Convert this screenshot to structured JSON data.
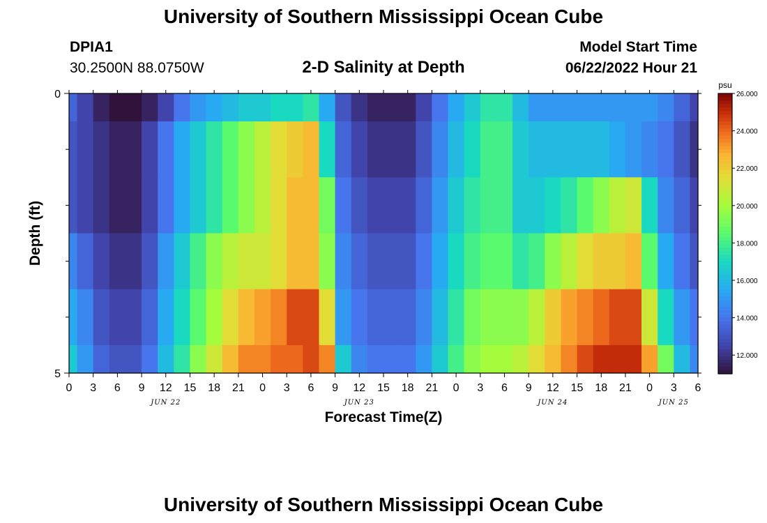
{
  "header": {
    "title": "University of Southern Mississippi Ocean Cube",
    "footer_title": "University of Southern Mississippi Ocean Cube",
    "station": "DPIA1",
    "coords": "30.2500N  88.0750W",
    "start_label": "Model Start Time",
    "start_value": "06/22/2022 Hour 21"
  },
  "chart_data": {
    "type": "heatmap",
    "title": "2-D Salinity at Depth",
    "xlabel": "Forecast Time(Z)",
    "ylabel": "Depth (ft)",
    "x_tick_labels": [
      "0",
      "3",
      "6",
      "9",
      "12",
      "15",
      "18",
      "21",
      "0",
      "3",
      "6",
      "9",
      "12",
      "15",
      "18",
      "21",
      "0",
      "3",
      "6",
      "9",
      "12",
      "15",
      "18",
      "21",
      "0",
      "3",
      "6"
    ],
    "x_date_labels": [
      {
        "label": "JUN 22",
        "at_tick": 4
      },
      {
        "label": "JUN 23",
        "at_tick": 12
      },
      {
        "label": "JUN 24",
        "at_tick": 20
      },
      {
        "label": "JUN 25",
        "at_tick": 25
      }
    ],
    "x_range_hours": [
      0,
      78
    ],
    "y_tick_labels": [
      "0",
      "5"
    ],
    "y_range_ft": [
      0,
      5
    ],
    "row_depths_ft": [
      0,
      1,
      2,
      3,
      4,
      5
    ],
    "time_hours": [
      0,
      2,
      4,
      6,
      8,
      10,
      12,
      14,
      16,
      18,
      20,
      22,
      24,
      26,
      28,
      30,
      32,
      34,
      36,
      38,
      40,
      42,
      44,
      46,
      48,
      50,
      52,
      54,
      56,
      58,
      60,
      62,
      64,
      66,
      68,
      70,
      72,
      74,
      76,
      78
    ],
    "salinity_psu": [
      [
        13.5,
        12.5,
        11.5,
        11.0,
        11.0,
        11.5,
        12.5,
        14.0,
        15.0,
        15.5,
        16.0,
        16.5,
        16.5,
        17.0,
        17.0,
        17.5,
        15.5,
        13.0,
        12.0,
        11.5,
        11.5,
        11.5,
        12.5,
        14.0,
        15.5,
        16.5,
        17.5,
        17.5,
        16.0,
        15.0,
        15.0,
        15.0,
        15.0,
        15.0,
        15.0,
        15.0,
        15.0,
        14.5,
        13.5,
        12.5
      ],
      [
        13.0,
        12.5,
        12.0,
        11.5,
        11.5,
        12.5,
        14.0,
        15.5,
        16.5,
        17.5,
        18.5,
        19.5,
        20.5,
        21.5,
        22.0,
        22.5,
        17.0,
        13.5,
        12.5,
        12.0,
        12.0,
        12.0,
        13.0,
        14.5,
        16.0,
        17.0,
        18.0,
        18.0,
        16.5,
        16.0,
        16.0,
        16.0,
        16.0,
        16.0,
        15.5,
        15.0,
        14.5,
        14.0,
        13.0,
        12.0
      ],
      [
        13.0,
        12.5,
        12.0,
        11.5,
        11.5,
        12.5,
        14.0,
        15.5,
        16.5,
        17.5,
        18.5,
        19.5,
        20.5,
        21.5,
        22.5,
        22.5,
        19.0,
        14.0,
        13.0,
        12.5,
        12.5,
        12.5,
        13.5,
        15.0,
        16.5,
        17.5,
        18.0,
        18.0,
        16.5,
        16.5,
        17.0,
        17.5,
        18.5,
        19.5,
        20.5,
        21.0,
        17.0,
        14.5,
        13.5,
        12.5
      ],
      [
        14.5,
        13.5,
        12.5,
        12.0,
        12.0,
        13.0,
        15.0,
        16.5,
        18.0,
        19.5,
        20.5,
        21.0,
        21.0,
        21.5,
        22.5,
        22.5,
        19.5,
        14.5,
        13.5,
        13.0,
        13.0,
        13.0,
        14.0,
        15.5,
        17.0,
        18.0,
        18.5,
        18.5,
        17.5,
        18.0,
        19.5,
        20.5,
        21.5,
        22.0,
        22.0,
        22.5,
        18.5,
        15.5,
        14.0,
        13.0
      ],
      [
        15.5,
        14.5,
        13.0,
        12.5,
        12.5,
        13.5,
        15.5,
        17.0,
        18.5,
        20.0,
        21.5,
        22.5,
        23.0,
        23.5,
        24.5,
        24.5,
        21.5,
        15.0,
        14.0,
        13.5,
        13.5,
        13.5,
        14.5,
        16.0,
        17.5,
        19.0,
        19.5,
        19.5,
        19.5,
        20.5,
        22.0,
        23.0,
        23.5,
        24.0,
        24.5,
        24.5,
        21.0,
        17.0,
        15.0,
        14.0
      ],
      [
        16.5,
        15.0,
        13.5,
        13.0,
        13.0,
        14.0,
        16.0,
        17.5,
        19.5,
        21.0,
        22.5,
        23.5,
        23.5,
        24.0,
        24.0,
        24.5,
        23.5,
        16.5,
        14.5,
        14.0,
        14.0,
        14.0,
        15.0,
        16.5,
        18.0,
        19.5,
        20.0,
        20.0,
        20.5,
        21.5,
        22.5,
        23.5,
        24.5,
        25.0,
        25.0,
        25.0,
        23.0,
        19.0,
        16.0,
        14.5
      ]
    ],
    "colorbar": {
      "unit": "psu",
      "min": 11.0,
      "max": 26.0,
      "tick_labels": [
        "26.000",
        "24.000",
        "22.000",
        "20.000",
        "18.000",
        "16.000",
        "14.000",
        "12.000"
      ]
    }
  }
}
